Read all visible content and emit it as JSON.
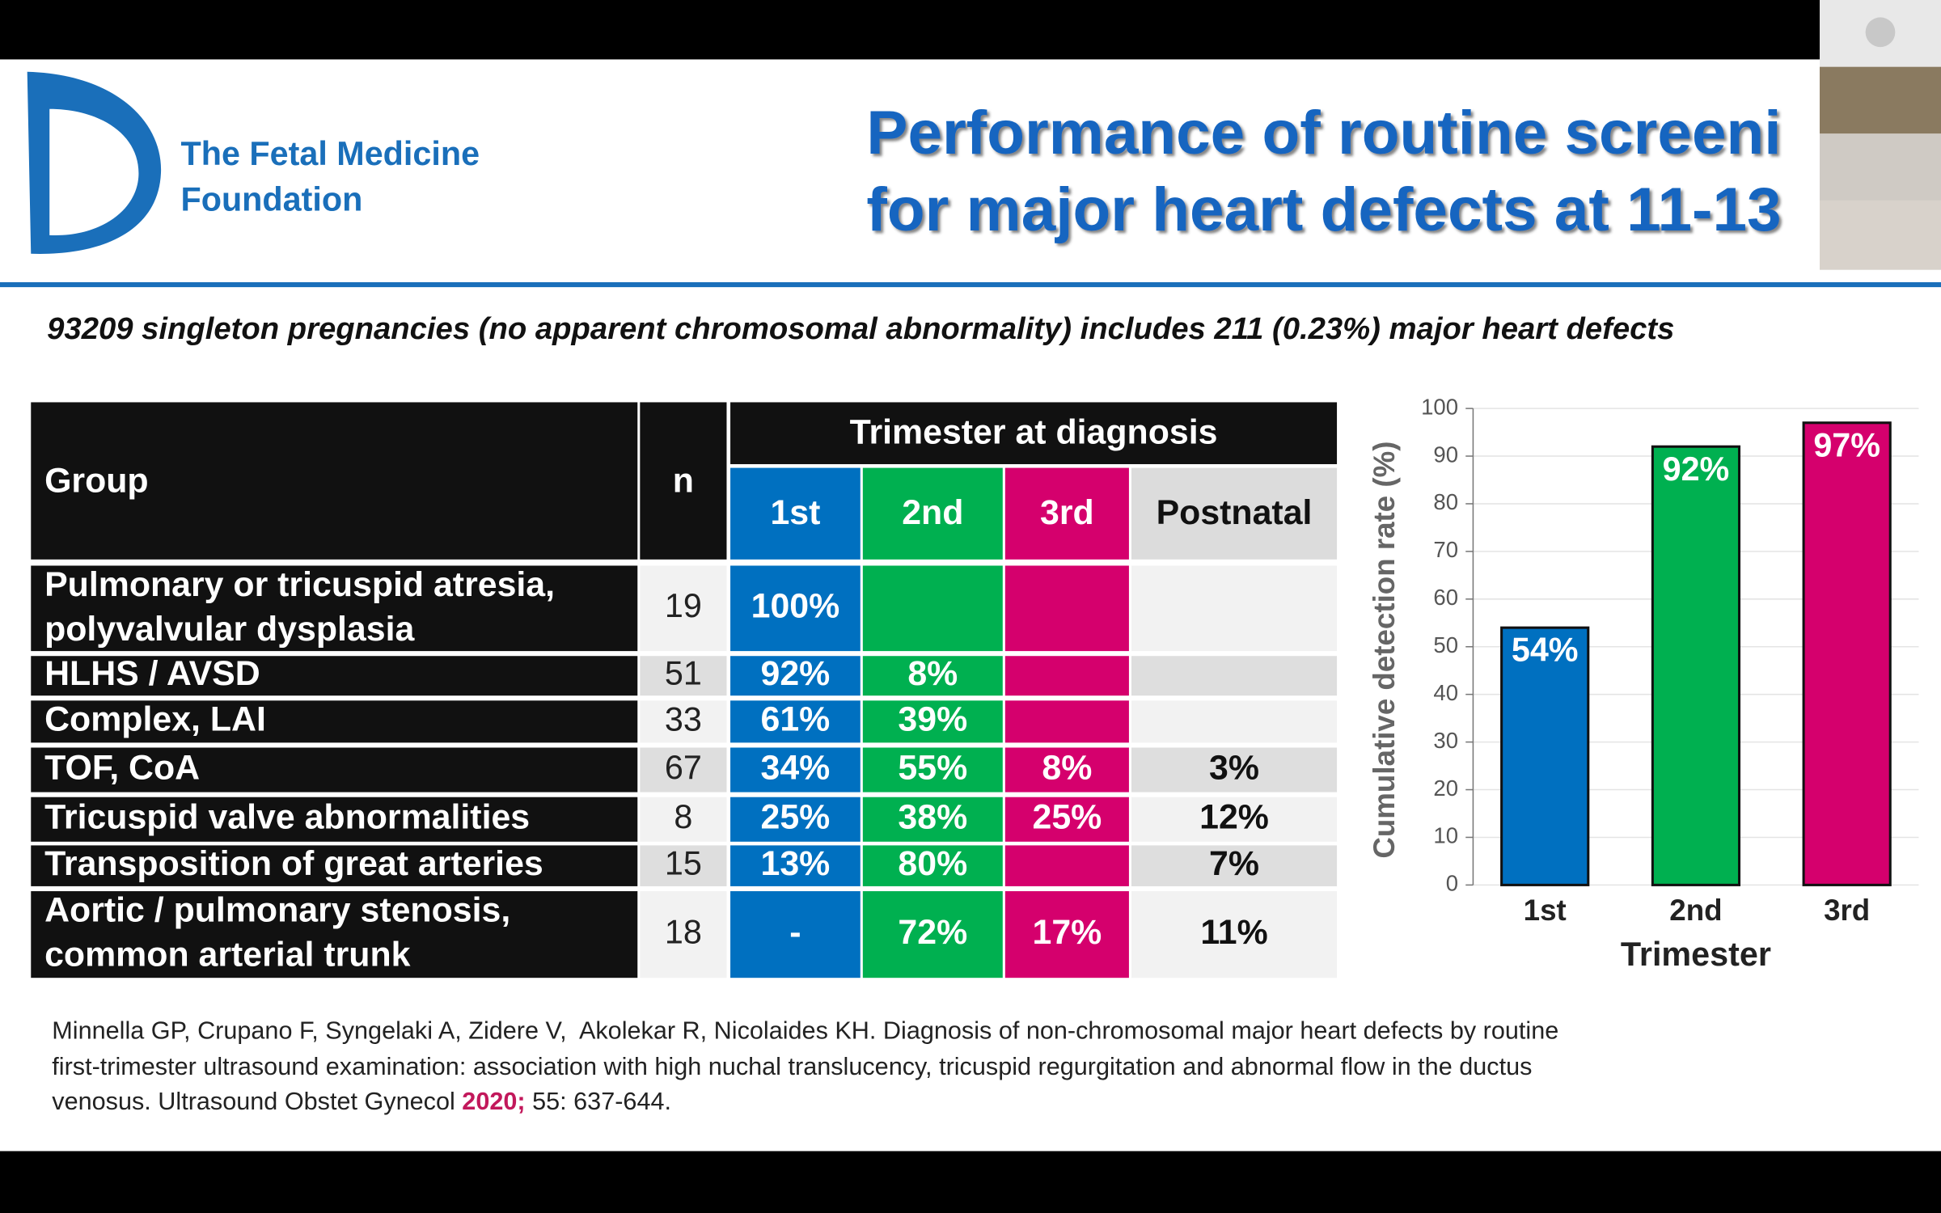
{
  "header": {
    "logo_lines": [
      "The Fetal Medicine",
      "Foundation"
    ],
    "title_lines": [
      "Performance of routine screeni",
      "for major heart defects at 11-13"
    ]
  },
  "subtitle": "93209 singleton pregnancies (no apparent chromosomal abnormality) includes 211 (0.23%) major heart defects",
  "table": {
    "header": {
      "group": "Group",
      "n": "n",
      "span": "Trimester at diagnosis",
      "columns": [
        "1st",
        "2nd",
        "3rd",
        "Postnatal"
      ]
    },
    "column_colors": [
      "#0070c0",
      "#00b050",
      "#d5006d",
      "#dcdcdc"
    ],
    "rows": [
      {
        "group": [
          "Pulmonary or tricuspid atresia,",
          "polyvalvular dysplasia"
        ],
        "n": 19,
        "cells": [
          "100%",
          null,
          null,
          null
        ]
      },
      {
        "group": [
          "HLHS / AVSD"
        ],
        "n": 51,
        "cells": [
          "92%",
          "8%",
          null,
          null
        ]
      },
      {
        "group": [
          "Complex, LAI"
        ],
        "n": 33,
        "cells": [
          "61%",
          "39%",
          null,
          null
        ]
      },
      {
        "group": [
          "TOF, CoA"
        ],
        "n": 67,
        "cells": [
          "34%",
          "55%",
          "8%",
          "3%"
        ]
      },
      {
        "group": [
          "Tricuspid valve abnormalities"
        ],
        "n": 8,
        "cells": [
          "25%",
          "38%",
          "25%",
          "12%"
        ]
      },
      {
        "group": [
          "Transposition of great arteries"
        ],
        "n": 15,
        "cells": [
          "13%",
          "80%",
          null,
          "7%"
        ]
      },
      {
        "group": [
          "Aortic / pulmonary stenosis,",
          "common arterial trunk"
        ],
        "n": 18,
        "cells": [
          "-",
          "72%",
          "17%",
          "11%"
        ]
      }
    ]
  },
  "chart_data": {
    "type": "bar",
    "categories": [
      "1st",
      "2nd",
      "3rd"
    ],
    "values": [
      54,
      92,
      97
    ],
    "value_labels": [
      "54%",
      "92%",
      "97%"
    ],
    "colors": [
      "#0070c0",
      "#00b050",
      "#d5006d"
    ],
    "ylim": [
      0,
      100
    ],
    "yticks": [
      0,
      10,
      20,
      30,
      40,
      50,
      60,
      70,
      80,
      90,
      100
    ],
    "y_label": "Cumulative detection rate (%)",
    "x_label": "Trimester",
    "grid": true
  },
  "citation": {
    "lines": [
      "Minnella GP, Crupano F, Syngelaki A, Zidere V,  Akolekar R, Nicolaides KH. Diagnosis of non-chromosomal major heart defects by routine",
      "first-trimester ultrasound examination: association with high nuchal translucency, tricuspid regurgitation and abnormal flow in the ductus"
    ],
    "last_line": [
      "venosus. Ultrasound Obstet Gynecol ",
      "2020;",
      " 55: 637-644."
    ]
  }
}
